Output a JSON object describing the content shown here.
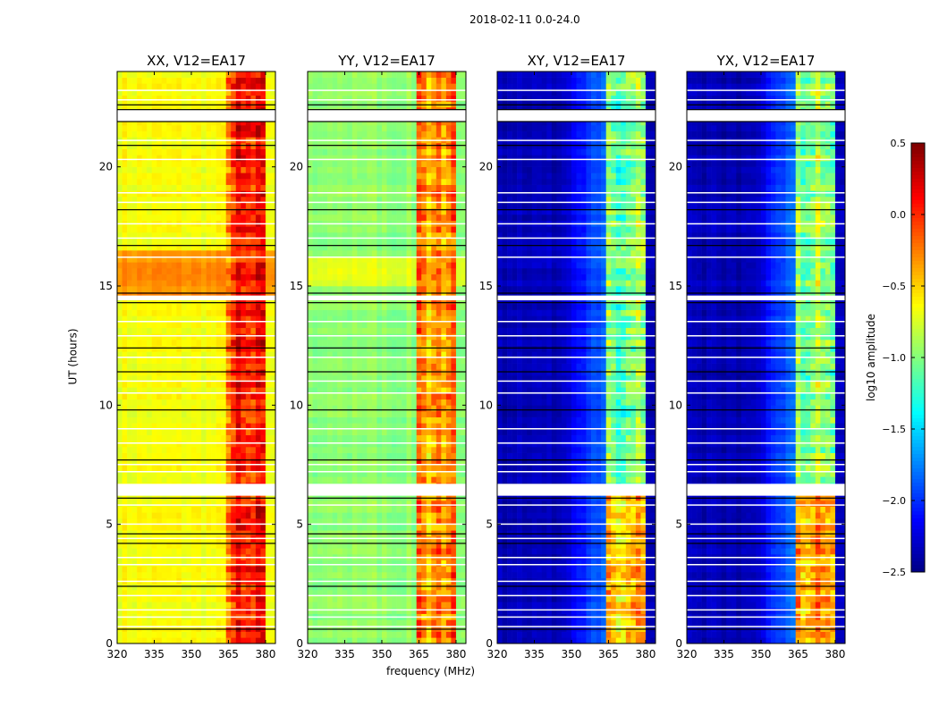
{
  "chart_data": {
    "type": "heatmap",
    "title": "2018-02-11 0.0-24.0",
    "xlabel": "frequency (MHz)",
    "ylabel": "UT (hours)",
    "xlim": [
      320,
      384
    ],
    "ylim": [
      0,
      24
    ],
    "xticks": [
      "320",
      "335",
      "350",
      "365",
      "380"
    ],
    "yticks": [
      "0",
      "5",
      "10",
      "15",
      "20"
    ],
    "colorbar": {
      "label": "log10 amplitude",
      "range": [
        -2.5,
        0.5
      ],
      "ticks": [
        "0.5",
        "0.0",
        "−0.5",
        "−1.0",
        "−1.5",
        "−2.0",
        "−2.5"
      ],
      "colormap": "jet"
    },
    "panels": [
      {
        "title": "XX, V12=EA17",
        "low_band_level": -0.65,
        "high_band_level": -0.05,
        "bright_interval_hours": [
          14.5,
          16.5
        ],
        "bright_interval_level": -0.3
      },
      {
        "title": "YY, V12=EA17",
        "low_band_level": -0.95,
        "high_band_level": -0.25,
        "bright_interval_hours": [
          14.8,
          16.2
        ],
        "bright_interval_level": -0.7
      },
      {
        "title": "XY, V12=EA17",
        "low_band_level": -2.35,
        "high_band_level": -0.95,
        "bright_interval_hours": [
          0,
          6.2
        ],
        "bright_interval_level": -0.35
      },
      {
        "title": "YX, V12=EA17",
        "low_band_level": -2.35,
        "high_band_level": -0.95,
        "bright_interval_hours": [
          0,
          6.2
        ],
        "bright_interval_level": -0.35
      }
    ],
    "high_band_mhz": [
      363.5,
      380
    ],
    "flagged_gaps_hours": [
      [
        21.9,
        22.4
      ],
      [
        6.2,
        6.7
      ],
      [
        14.4,
        14.6
      ]
    ],
    "flagged_rows_hours": [
      0.7,
      1.1,
      1.4,
      2.0,
      2.6,
      3.3,
      3.6,
      4.4,
      5.0,
      5.8,
      7.2,
      7.5,
      8.4,
      9.0,
      10.5,
      11.0,
      12.0,
      12.9,
      13.5,
      16.2,
      17.0,
      17.6,
      18.5,
      18.9,
      20.3,
      21.1,
      22.8,
      23.2
    ],
    "black_rows_hours": [
      0.6,
      2.4,
      4.2,
      4.6,
      6.1,
      7.7,
      9.8,
      11.4,
      12.4,
      14.3,
      14.7,
      16.7,
      18.2,
      20.9,
      21.9,
      22.4,
      22.6
    ]
  }
}
